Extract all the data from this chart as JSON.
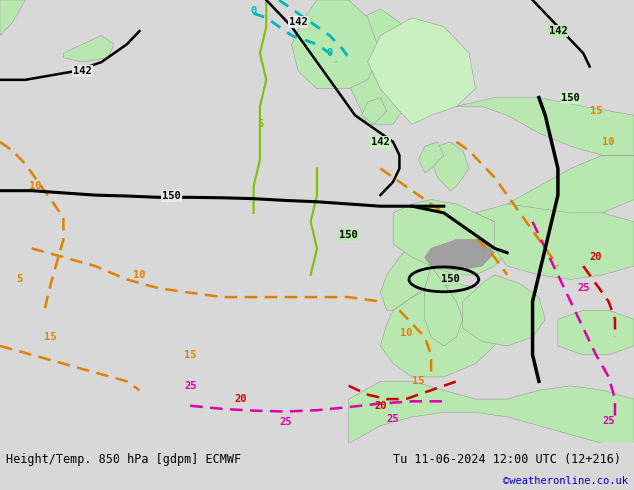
{
  "title_left": "Height/Temp. 850 hPa [gdpm] ECMWF",
  "title_right": "Tu 11-06-2024 12:00 UTC (12+216)",
  "credit": "©weatheronline.co.uk",
  "credit_color": "#0000cc",
  "footer_bg": "#d8d8d8",
  "footer_text_color": "#000000",
  "fig_width": 6.34,
  "fig_height": 4.9,
  "dpi": 100,
  "ocean_color": "#e8e8e8",
  "land_color": "#b8e8b0",
  "land_color2": "#c8f0c0",
  "mountain_color": "#a0a0a0",
  "border_color": "#888888"
}
